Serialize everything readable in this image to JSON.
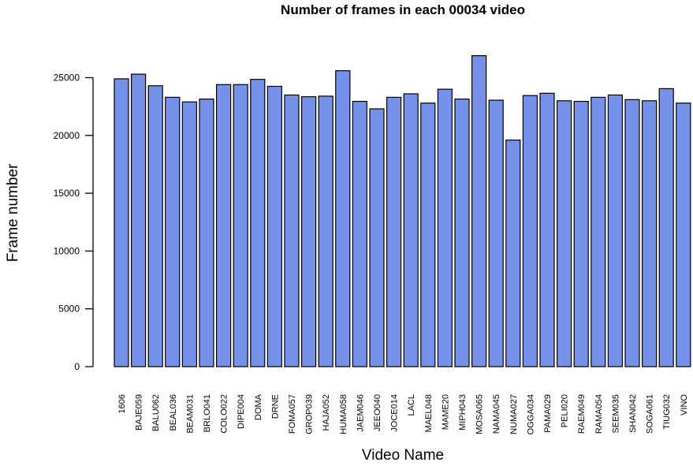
{
  "chart_data": {
    "type": "bar",
    "title": "Number of frames in each 00034 video",
    "xlabel": "Video Name",
    "ylabel": "Frame number",
    "ylim": [
      0,
      28000
    ],
    "yticks": [
      0,
      5000,
      10000,
      15000,
      20000,
      25000
    ],
    "bar_color": "#7592e8",
    "bar_edge_color": "#000000",
    "categories": [
      "1606",
      "BAJE059",
      "BALU062",
      "BEAL036",
      "BEAM031",
      "BRLO041",
      "COLO022",
      "DIPE004",
      "DOMA",
      "DRNE",
      "FOMA057",
      "GROP039",
      "HAJA052",
      "HUMA058",
      "JAEM046",
      "JEEO040",
      "JOCE014",
      "LACL",
      "MAEL048",
      "MAME20",
      "MIPH043",
      "MOSA065",
      "NAMA045",
      "NUMA027",
      "OGGA034",
      "PAMA029",
      "PELI020",
      "RAEM049",
      "RAMA054",
      "SEEM035",
      "SHAN042",
      "SOGA061",
      "TIUG032",
      "VINO"
    ],
    "values": [
      24900,
      25300,
      24300,
      23300,
      22900,
      23150,
      24400,
      24400,
      24850,
      24250,
      23500,
      23350,
      23400,
      25600,
      22950,
      22300,
      23300,
      23600,
      22800,
      24000,
      23150,
      26900,
      23050,
      19600,
      23450,
      23650,
      23000,
      22950,
      23300,
      23500,
      23100,
      23000,
      24050,
      22800
    ]
  }
}
